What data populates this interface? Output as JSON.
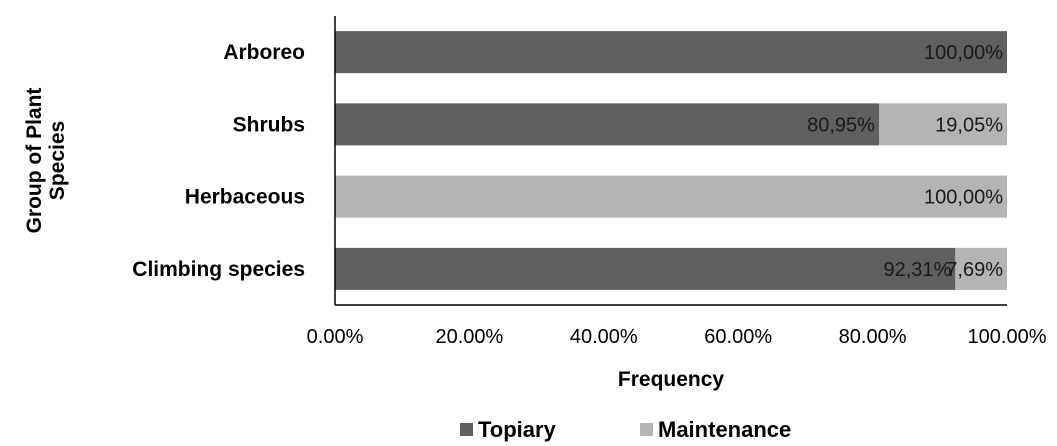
{
  "chart_data": {
    "type": "bar",
    "orientation": "horizontal",
    "stacked": true,
    "percent_stacked": true,
    "categories": [
      "Arboreo",
      "Shrubs",
      "Herbaceous",
      "Climbing species"
    ],
    "series": [
      {
        "name": "Topiary",
        "color": "#5f5f5f",
        "values": [
          100.0,
          80.95,
          0,
          92.31
        ],
        "labels": [
          "100,00%",
          "80,95%",
          "",
          "92,31%"
        ]
      },
      {
        "name": "Maintenance",
        "color": "#b4b4b4",
        "values": [
          0,
          19.05,
          100.0,
          7.69
        ],
        "labels": [
          "",
          "19,05%",
          "100,00%",
          "7,69%"
        ]
      }
    ],
    "xlabel": "Frequency",
    "ylabel": "Group of Plant Species",
    "ylabel_lines": [
      "Group of Plant",
      "Species"
    ],
    "xlim": [
      0,
      100
    ],
    "x_ticks": [
      "0.00%",
      "20.00%",
      "40.00%",
      "60.00%",
      "80.00%",
      "100.00%"
    ],
    "grid": false,
    "legend_position": "bottom"
  }
}
